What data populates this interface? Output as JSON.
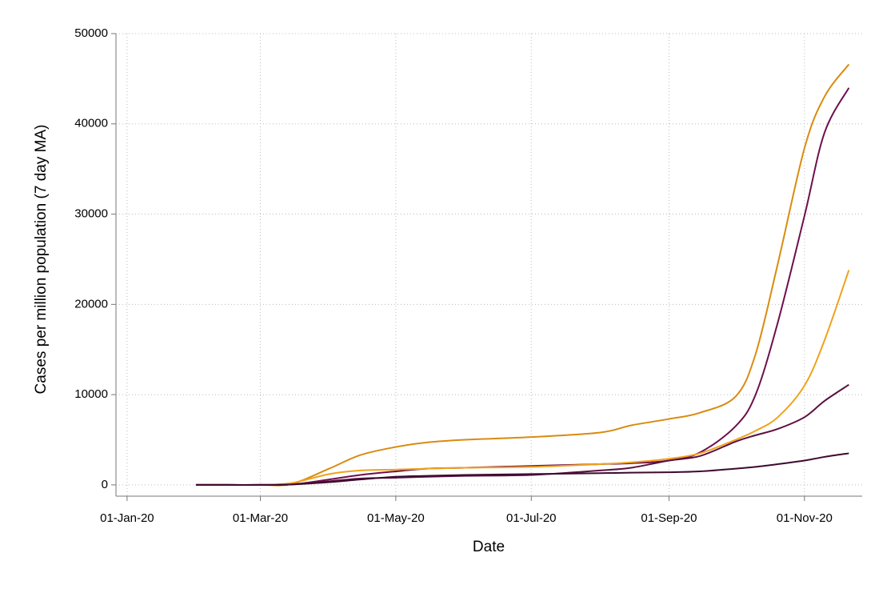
{
  "chart_data": {
    "type": "line",
    "x_label": "Date",
    "y_label": "Cases per million population (7 day MA)",
    "x": [
      "2020-02-01",
      "2020-02-15",
      "2020-03-01",
      "2020-03-15",
      "2020-04-01",
      "2020-04-15",
      "2020-05-01",
      "2020-05-15",
      "2020-06-01",
      "2020-07-01",
      "2020-08-01",
      "2020-08-15",
      "2020-09-01",
      "2020-09-15",
      "2020-10-01",
      "2020-10-10",
      "2020-10-20",
      "2020-11-01",
      "2020-11-10",
      "2020-11-21"
    ],
    "series": [
      {
        "color": "#d98b10",
        "values": [
          0,
          0,
          0,
          100,
          1800,
          3300,
          4200,
          4700,
          5000,
          5300,
          5800,
          6600,
          7300,
          8000,
          9800,
          14500,
          24500,
          37300,
          43000,
          46600
        ]
      },
      {
        "color": "#6e0f4c",
        "values": [
          0,
          0,
          0,
          50,
          600,
          1100,
          1500,
          1800,
          1900,
          2100,
          2300,
          2400,
          2700,
          3600,
          6500,
          10000,
          18000,
          29800,
          39000,
          44000
        ]
      },
      {
        "color": "#f0a21c",
        "values": [
          0,
          0,
          0,
          200,
          1200,
          1600,
          1700,
          1800,
          1900,
          2000,
          2300,
          2500,
          2900,
          3500,
          5000,
          6000,
          7500,
          11000,
          16000,
          23800
        ]
      },
      {
        "color": "#5a1040",
        "values": [
          0,
          0,
          0,
          50,
          400,
          700,
          800,
          900,
          1000,
          1100,
          1600,
          1900,
          2700,
          3200,
          4800,
          5500,
          6200,
          7500,
          9300,
          11100
        ]
      },
      {
        "color": "#3d0a2e",
        "values": [
          0,
          0,
          0,
          50,
          300,
          600,
          900,
          1000,
          1100,
          1200,
          1300,
          1350,
          1400,
          1500,
          1800,
          2000,
          2300,
          2700,
          3100,
          3500
        ]
      }
    ],
    "xlim": [
      "2019-12-27",
      "2020-11-27"
    ],
    "xticks": [
      {
        "value": "2020-01-01",
        "label": "01-Jan-20"
      },
      {
        "value": "2020-03-01",
        "label": "01-Mar-20"
      },
      {
        "value": "2020-05-01",
        "label": "01-May-20"
      },
      {
        "value": "2020-07-01",
        "label": "01-Jul-20"
      },
      {
        "value": "2020-09-01",
        "label": "01-Sep-20"
      },
      {
        "value": "2020-11-01",
        "label": "01-Nov-20"
      }
    ],
    "ylim": [
      -1250,
      50000
    ],
    "yticks": [
      0,
      10000,
      20000,
      30000,
      40000,
      50000
    ],
    "grid": true
  }
}
